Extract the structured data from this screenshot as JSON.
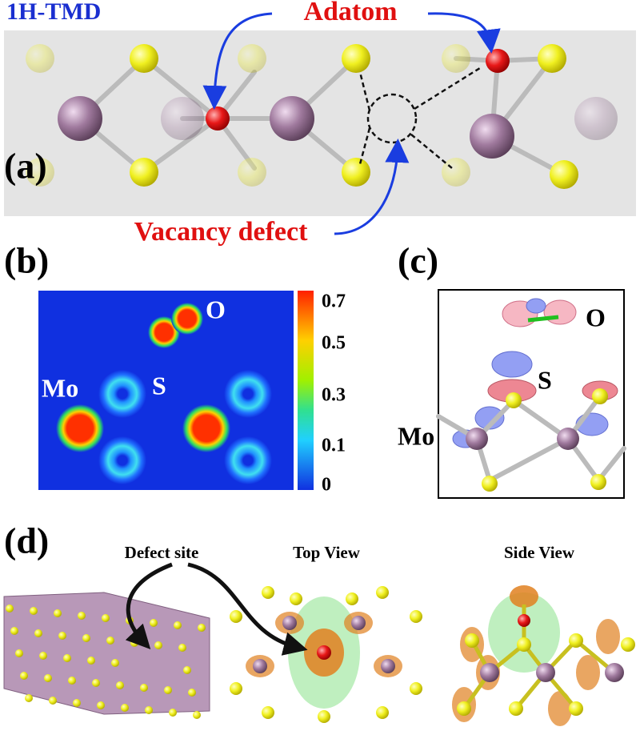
{
  "panel_a": {
    "label": "(a)",
    "material": "1H-TMD",
    "adatom": "Adatom",
    "vacancy": "Vacancy defect"
  },
  "panel_b": {
    "label": "(b)",
    "atoms": [
      "O",
      "Mo",
      "S"
    ],
    "colorbar": {
      "ticks": [
        0.7,
        0.5,
        0.3,
        0.1,
        0
      ]
    }
  },
  "panel_c": {
    "label": "(c)",
    "atoms": [
      "O",
      "S",
      "Mo"
    ]
  },
  "panel_d": {
    "label": "(d)",
    "defect_site": "Defect site",
    "top_view": "Top View",
    "side_view": "Side View"
  }
}
